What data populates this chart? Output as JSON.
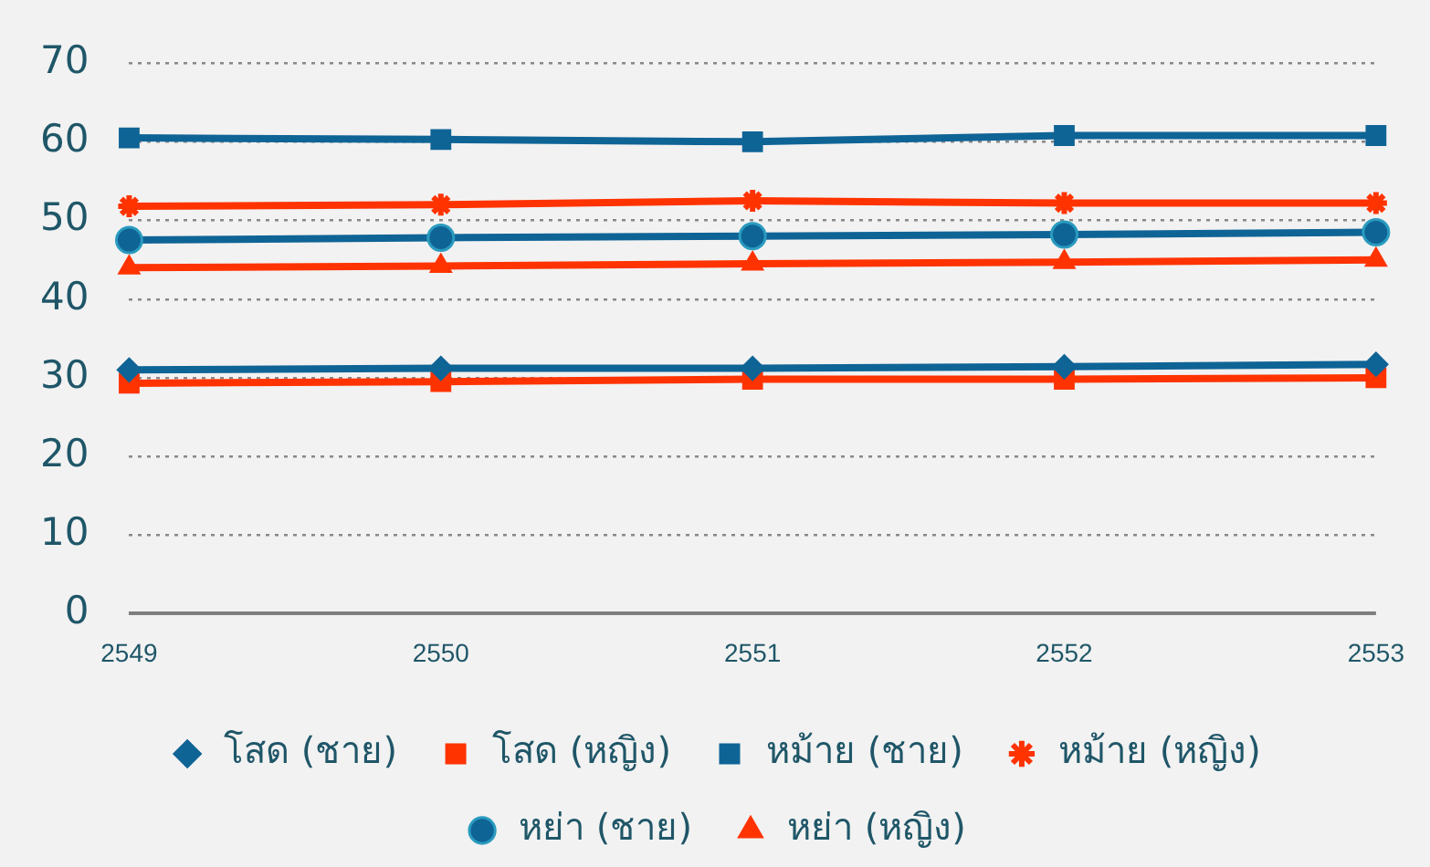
{
  "chart_data": {
    "type": "line",
    "categories": [
      "2549",
      "2550",
      "2551",
      "2552",
      "2553"
    ],
    "series": [
      {
        "name": "โสด (ชาย)",
        "color": "#0f6496",
        "marker": "diamond",
        "values": [
          31.0,
          31.2,
          31.2,
          31.4,
          31.7
        ]
      },
      {
        "name": "โสด (หญิง)",
        "color": "#ff3300",
        "marker": "square",
        "values": [
          29.3,
          29.5,
          29.8,
          29.8,
          30.0
        ]
      },
      {
        "name": "หม้าย (ชาย)",
        "color": "#0f6496",
        "marker": "square",
        "values": [
          60.5,
          60.3,
          60.0,
          60.8,
          60.8
        ]
      },
      {
        "name": "หม้าย (หญิง)",
        "color": "#ff3300",
        "marker": "cross",
        "values": [
          51.8,
          52.0,
          52.5,
          52.2,
          52.2
        ]
      },
      {
        "name": "หย่า (ชาย)",
        "color": "#0f6496",
        "marker": "circle",
        "values": [
          47.5,
          47.8,
          48.0,
          48.2,
          48.5
        ]
      },
      {
        "name": "หย่า (หญิง)",
        "color": "#ff3300",
        "marker": "triangle",
        "values": [
          44.0,
          44.2,
          44.5,
          44.7,
          45.0
        ]
      }
    ],
    "ylim": [
      0,
      70
    ],
    "yticks": [
      0,
      10,
      20,
      30,
      40,
      50,
      60,
      70
    ],
    "grid": "y",
    "legend": "bottom",
    "line_style": "solid"
  }
}
